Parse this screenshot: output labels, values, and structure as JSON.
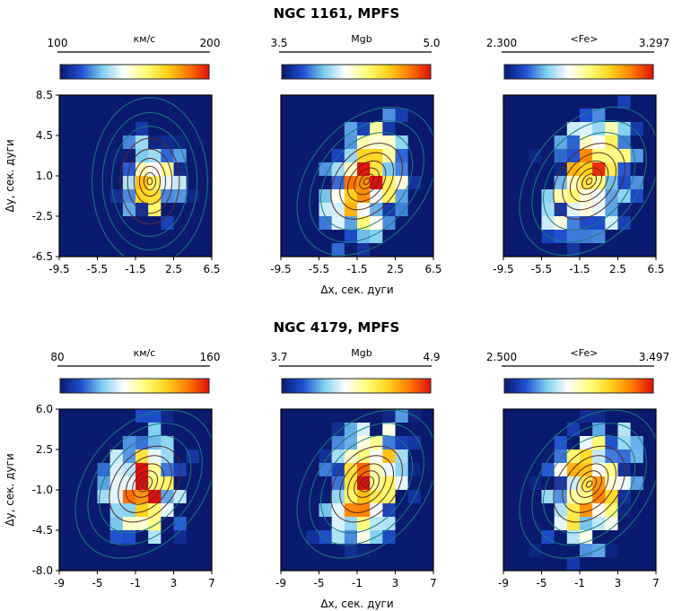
{
  "figure": {
    "xlabel": "Δx, сек. дуги",
    "ylabel": "Δy, сек. дуги",
    "colormap": [
      "#0a1a6e",
      "#1f4fd0",
      "#7fd0f0",
      "#ffffff",
      "#ffff7a",
      "#ffd21a",
      "#ff7a00",
      "#e0100c"
    ]
  },
  "chart_data": [
    {
      "type": "heatmap",
      "title": "NGC 1161, MPFS",
      "x_ticks": [
        "-9.5",
        "-5.5",
        "-1.5",
        "2.5",
        "6.5"
      ],
      "y_ticks": [
        "8.5",
        "4.5",
        "1.0",
        "-2.5",
        "-6.5"
      ],
      "xlim": [
        -9.5,
        6.5
      ],
      "ylim": [
        -6.5,
        8.5
      ],
      "panels": [
        {
          "quantity": "km/s",
          "label": "км/с",
          "min": "100",
          "max": "200",
          "center": [
            0.0,
            0.5
          ],
          "pattern": "velocity"
        },
        {
          "quantity": "Mgb",
          "label": "Mgb",
          "min": "3.5",
          "max": "5.0",
          "center": [
            -0.5,
            0.5
          ],
          "pattern": "mgb"
        },
        {
          "quantity": "Fe",
          "label": "<Fe>",
          "min": "2.300",
          "max": "3.297",
          "center": [
            -0.5,
            0.5
          ],
          "pattern": "fe"
        }
      ]
    },
    {
      "type": "heatmap",
      "title": "NGC 4179, MPFS",
      "x_ticks": [
        "-9",
        "-5",
        "-1",
        "3",
        "7"
      ],
      "y_ticks": [
        "6.0",
        "2.5",
        "-1.0",
        "-4.5",
        "-8.0"
      ],
      "xlim": [
        -9,
        7
      ],
      "ylim": [
        -8.0,
        6.0
      ],
      "panels": [
        {
          "quantity": "km/s",
          "label": "км/с",
          "min": "80",
          "max": "160",
          "center": [
            0.0,
            -0.5
          ],
          "pattern": "velocity"
        },
        {
          "quantity": "Mgb",
          "label": "Mgb",
          "min": "3.7",
          "max": "4.9",
          "center": [
            0.0,
            -0.5
          ],
          "pattern": "mgb"
        },
        {
          "quantity": "Fe",
          "label": "<Fe>",
          "min": "2.500",
          "max": "3.497",
          "center": [
            0.0,
            -0.5
          ],
          "pattern": "fe"
        }
      ]
    }
  ]
}
